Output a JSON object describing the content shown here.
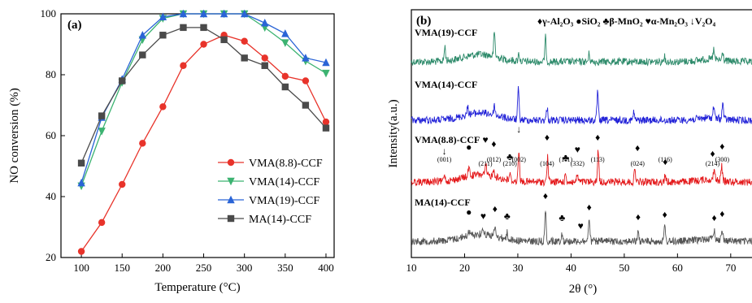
{
  "chart_data": [
    {
      "panel": "(a)",
      "type": "line",
      "xlabel": "Temperature (°C)",
      "ylabel": "NO conversion (%)",
      "xlim": [
        75,
        410
      ],
      "ylim": [
        20,
        100
      ],
      "xticks": [
        100,
        150,
        200,
        250,
        300,
        350,
        400
      ],
      "yticks": [
        20,
        40,
        60,
        80,
        100
      ],
      "legend_position": "lower-right",
      "x": [
        100,
        125,
        150,
        175,
        200,
        225,
        250,
        275,
        300,
        325,
        350,
        375,
        400
      ],
      "series": [
        {
          "name": "VMA(8.8)-CCF",
          "color": "#e8332a",
          "marker": "circle",
          "values": [
            22,
            31.5,
            44,
            57.5,
            69.5,
            83,
            90,
            93,
            91,
            85.5,
            79.5,
            78,
            64.5
          ]
        },
        {
          "name": "VMA(14)-CCF",
          "color": "#3cb371",
          "marker": "triangle-down",
          "values": [
            43.5,
            61.5,
            77.5,
            91.5,
            98.5,
            100,
            100,
            100,
            100,
            95.5,
            90.5,
            84.5,
            80.5
          ]
        },
        {
          "name": "VMA(19)-CCF",
          "color": "#2a64d6",
          "marker": "triangle-up",
          "values": [
            44.5,
            66,
            78.5,
            93,
            99,
            100,
            100,
            100,
            100,
            97,
            93.5,
            85.5,
            84
          ]
        },
        {
          "name": "MA(14)-CCF",
          "color": "#4a4a4a",
          "marker": "square",
          "values": [
            51,
            66.5,
            78,
            86.5,
            93,
            95.5,
            95.5,
            91.5,
            85.5,
            83,
            76,
            70,
            62.5
          ]
        }
      ]
    },
    {
      "panel": "(b)",
      "type": "line",
      "xlabel": "2θ (°)",
      "ylabel": "Intensity(a.u.)",
      "xlim": [
        10,
        74
      ],
      "xticks": [
        10,
        20,
        30,
        40,
        50,
        60,
        70
      ],
      "legend_text": "♦γ-Al₂O₃ ●SiO₂ ♣β-MnO₂ ♥α-Mn₂O₃ ↓V₂O₄",
      "series": [
        {
          "name": "VMA(19)-CCF",
          "color": "#2e8b6b",
          "peaks": [
            {
              "x": 16.3,
              "h": 18
            },
            {
              "x": 25.6,
              "h": 30
            },
            {
              "x": 30.2,
              "h": 10
            },
            {
              "x": 35.2,
              "h": 30
            },
            {
              "x": 43.4,
              "h": 10
            },
            {
              "x": 57.5,
              "h": 8
            },
            {
              "x": 66.8,
              "h": 12
            },
            {
              "x": 68.5,
              "h": 10
            }
          ]
        },
        {
          "name": "VMA(14)-CCF",
          "color": "#2323d8",
          "peaks": [
            {
              "x": 20.6,
              "h": 10
            },
            {
              "x": 25.6,
              "h": 12
            },
            {
              "x": 30.1,
              "h": 38
            },
            {
              "x": 35.5,
              "h": 16
            },
            {
              "x": 45.0,
              "h": 36
            },
            {
              "x": 51.8,
              "h": 10
            },
            {
              "x": 66.8,
              "h": 14
            },
            {
              "x": 68.5,
              "h": 20
            }
          ]
        },
        {
          "name": "VMA(8.8)-CCF",
          "color": "#e41a1c",
          "peaks": [
            {
              "x": 16.2,
              "h": 10
            },
            {
              "x": 20.8,
              "h": 12
            },
            {
              "x": 24.0,
              "h": 12
            },
            {
              "x": 25.5,
              "h": 10
            },
            {
              "x": 28.5,
              "h": 8
            },
            {
              "x": 30.2,
              "h": 40
            },
            {
              "x": 35.6,
              "h": 30
            },
            {
              "x": 39.0,
              "h": 10
            },
            {
              "x": 41.2,
              "h": 10
            },
            {
              "x": 45.1,
              "h": 40
            },
            {
              "x": 52.0,
              "h": 16
            },
            {
              "x": 57.7,
              "h": 8
            },
            {
              "x": 66.9,
              "h": 14
            },
            {
              "x": 68.3,
              "h": 18
            }
          ]
        },
        {
          "name": "MA(14)-CCF",
          "color": "#555555",
          "peaks": [
            {
              "x": 20.8,
              "h": 6
            },
            {
              "x": 23.5,
              "h": 8
            },
            {
              "x": 25.7,
              "h": 12
            },
            {
              "x": 28.0,
              "h": 8
            },
            {
              "x": 35.2,
              "h": 38
            },
            {
              "x": 38.3,
              "h": 10
            },
            {
              "x": 43.4,
              "h": 30
            },
            {
              "x": 52.6,
              "h": 10
            },
            {
              "x": 57.6,
              "h": 18
            },
            {
              "x": 66.9,
              "h": 12
            },
            {
              "x": 68.4,
              "h": 14
            }
          ]
        }
      ],
      "annotations": [
        {
          "text": "(001)",
          "x": 16.2
        },
        {
          "text": "(211)",
          "x": 23.9
        },
        {
          "text": "(012)",
          "x": 25.5
        },
        {
          "text": "(210)",
          "x": 28.5
        },
        {
          "text": "(002)",
          "x": 30.2
        },
        {
          "text": "(104)",
          "x": 35.5
        },
        {
          "text": "(111)",
          "x": 39.0
        },
        {
          "text": "(332)",
          "x": 41.2
        },
        {
          "text": "(113)",
          "x": 45.0
        },
        {
          "text": "(024)",
          "x": 52.5
        },
        {
          "text": "(116)",
          "x": 57.7
        },
        {
          "text": "(214)",
          "x": 66.6
        },
        {
          "text": "(300)",
          "x": 68.4
        }
      ]
    }
  ],
  "ui": {
    "panel_a_label": "(a)",
    "panel_b_label": "(b)",
    "legend_b": "♦γ-Al₂O₃ ●SiO₂ ♣β-MnO₂ ♥α-Mn₂O₃ ↓V₂O₄",
    "a_xlabel": "Temperature (°C)",
    "a_ylabel": "NO conversion (%)",
    "b_xlabel": "2θ (°)",
    "b_ylabel": "Intensity(a.u.)",
    "b_label_19": "VMA(19)-CCF",
    "b_label_14": "VMA(14)-CCF",
    "b_label_88": "VMA(8.8)-CCF",
    "b_label_ma": "MA(14)-CCF"
  }
}
